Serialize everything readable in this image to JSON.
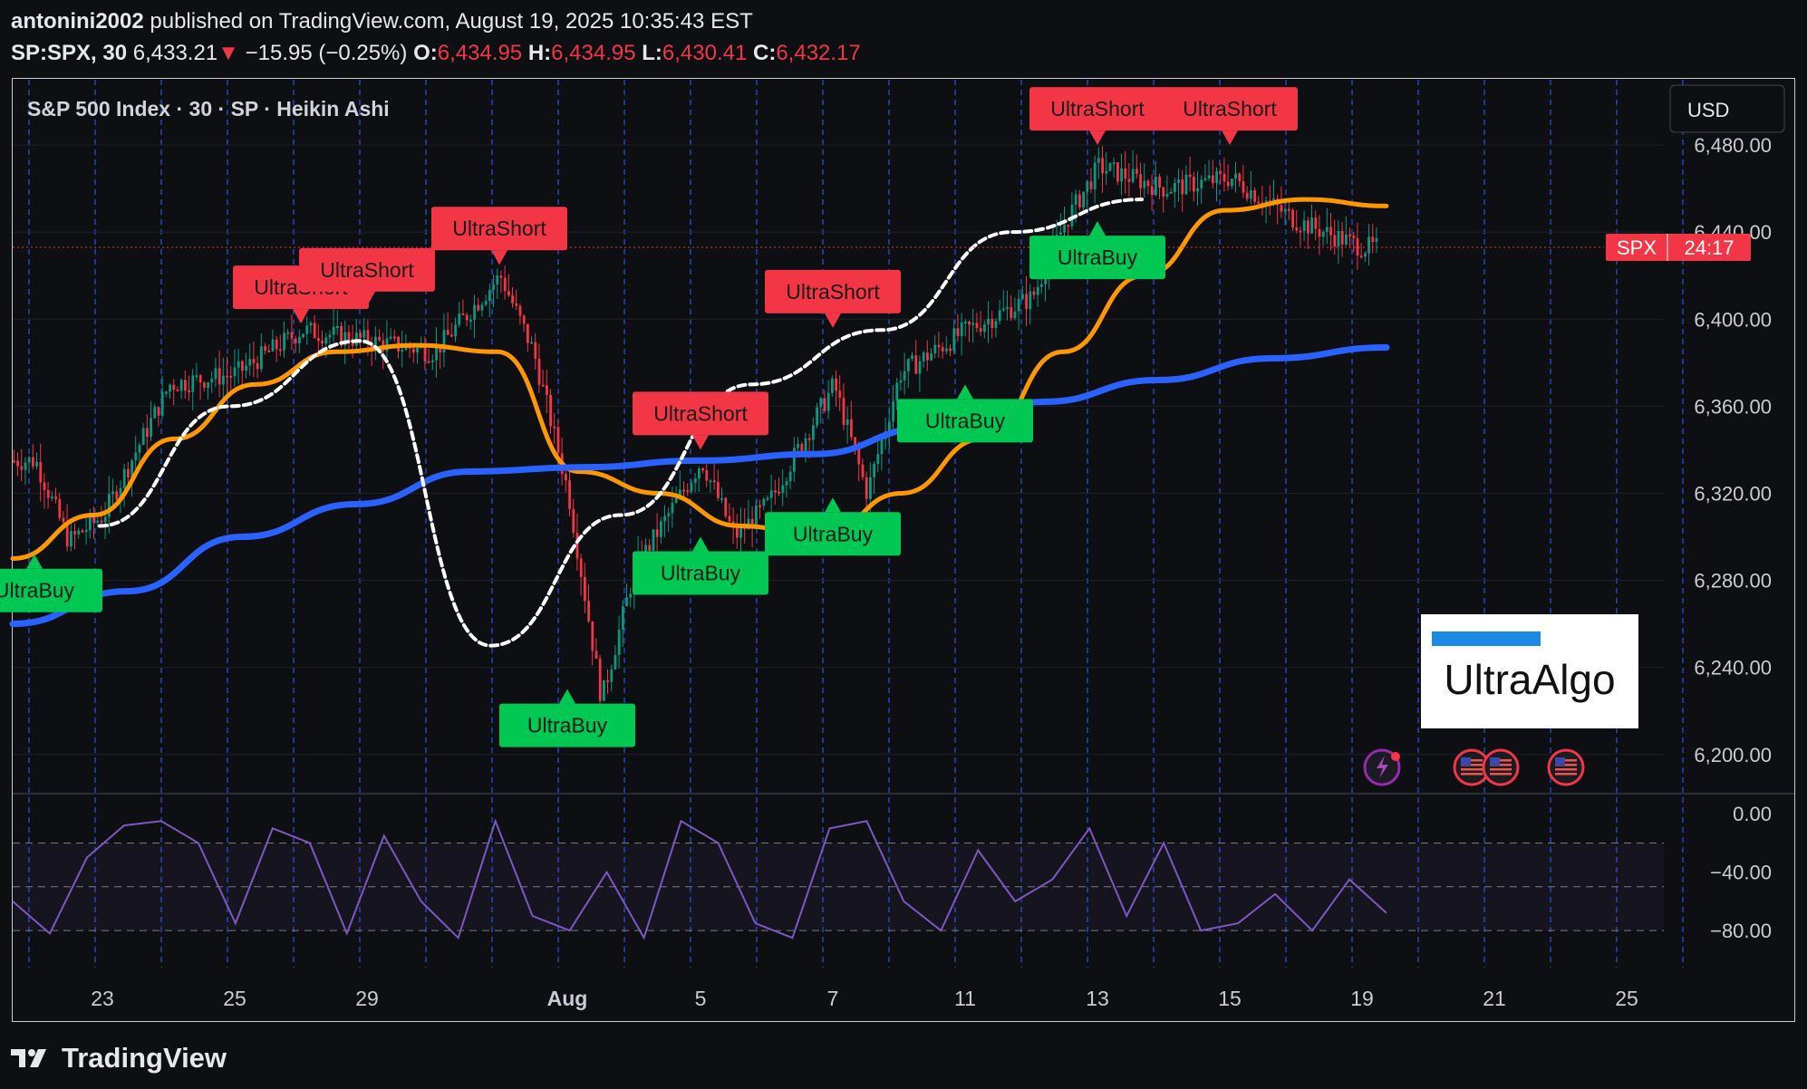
{
  "header": {
    "author": "antonini2002",
    "published": "published on TradingView.com, August 19, 2025 10:35:43 EST",
    "symbol": "SP:SPX, 30",
    "last": "6,433.21",
    "down_arrow": "▼",
    "change": "−15.95 (−0.25%)",
    "o_label": "O:",
    "o": "6,434.95",
    "h_label": "H:",
    "h": "6,434.95",
    "l_label": "L:",
    "l": "6,430.41",
    "c_label": "C:",
    "c": "6,432.17"
  },
  "legend": "S&P 500 Index · 30 · SP · Heikin Ashi",
  "currency_button": "USD",
  "price_tag": {
    "symbol": "SPX",
    "countdown": "24:17",
    "value": 6433.21
  },
  "footer": {
    "brand": "TradingView"
  },
  "watermark": "UltraAlgo",
  "colors": {
    "up": "#089981",
    "down": "#f23645",
    "signal_short": "#f23645",
    "signal_buy": "#00c853",
    "ema_orange": "#ff9800",
    "ema_blue": "#2962ff",
    "trail_white": "#ffffff",
    "oscillator": "#7e57c2",
    "grid_dashed": "#2962ff"
  },
  "chart_data": [
    {
      "type": "line",
      "title": "S&P 500 Index · 30 · SP · Heikin Ashi",
      "candle_style": "Heikin Ashi",
      "x_tick_labels": [
        "23",
        "25",
        "29",
        "Aug",
        "5",
        "7",
        "11",
        "13",
        "15",
        "19",
        "21",
        "25"
      ],
      "y_tick_labels": [
        "6,480.00",
        "6,440.00",
        "6,400.00",
        "6,360.00",
        "6,320.00",
        "6,280.00",
        "6,240.00",
        "6,200.00"
      ],
      "ylim": [
        6182,
        6510
      ],
      "price_points": {
        "x": [
          "Jul 22",
          "Jul 22.5",
          "Jul 23",
          "Jul 24",
          "Jul 25",
          "Jul 28",
          "Jul 29",
          "Jul 30",
          "Jul 31",
          "Jul 31.5",
          "Aug 1",
          "Aug 1.5",
          "Aug 4",
          "Aug 5",
          "Aug 5.5",
          "Aug 6",
          "Aug 7",
          "Aug 7.5",
          "Aug 8",
          "Aug 11",
          "Aug 12",
          "Aug 12.5",
          "Aug 13",
          "Aug 14",
          "Aug 15",
          "Aug 18",
          "Aug 19"
        ],
        "values": [
          6335,
          6298,
          6310,
          6370,
          6375,
          6395,
          6390,
          6385,
          6420,
          6385,
          6320,
          6225,
          6285,
          6335,
          6300,
          6315,
          6370,
          6320,
          6375,
          6395,
          6410,
          6445,
          6470,
          6460,
          6465,
          6445,
          6433
        ]
      },
      "series": [
        {
          "name": "",
          "color": "#ff9800",
          "values": [
            6290,
            6310,
            6345,
            6370,
            6385,
            6388,
            6385,
            6330,
            6320,
            6305,
            6300,
            6320,
            6345,
            6385,
            6420,
            6450,
            6455,
            6452
          ]
        },
        {
          "name": "",
          "color": "#2962ff",
          "values": [
            6260,
            6275,
            6300,
            6315,
            6330,
            6332,
            6335,
            6338,
            6350,
            6362,
            6372,
            6382,
            6387
          ]
        },
        {
          "name": "",
          "color": "#ffffff",
          "values": [
            6305,
            6360,
            6390,
            6250,
            6310,
            6370,
            6395,
            6440,
            6455
          ]
        }
      ],
      "signals": [
        {
          "text": "UltraBuy",
          "x": "Jul 22",
          "price": 6292
        },
        {
          "text": "UltraShort",
          "x": "Jul 28",
          "price": 6398
        },
        {
          "text": "UltraShort",
          "x": "Jul 29",
          "price": 6406
        },
        {
          "text": "UltraShort",
          "x": "Jul 31",
          "price": 6425
        },
        {
          "text": "UltraBuy",
          "x": "Aug 1",
          "price": 6230
        },
        {
          "text": "UltraShort",
          "x": "Aug 5",
          "price": 6340
        },
        {
          "text": "UltraBuy",
          "x": "Aug 5",
          "price": 6300
        },
        {
          "text": "UltraShort",
          "x": "Aug 7",
          "price": 6396
        },
        {
          "text": "UltraBuy",
          "x": "Aug 7",
          "price": 6318
        },
        {
          "text": "UltraBuy",
          "x": "Aug 11",
          "price": 6370
        },
        {
          "text": "UltraShort",
          "x": "Aug 13",
          "price": 6480
        },
        {
          "text": "UltraBuy",
          "x": "Aug 13",
          "price": 6445
        },
        {
          "text": "UltraShort",
          "x": "Aug 15",
          "price": 6480
        }
      ],
      "grid": true
    },
    {
      "type": "line",
      "y_tick_labels": [
        "0.00",
        "−40.00",
        "−80.00"
      ],
      "ylim": [
        -88,
        2
      ],
      "bands": [
        -20,
        -50,
        -80
      ],
      "series": [
        {
          "name": "",
          "color": "#7e57c2",
          "values": [
            -60,
            -82,
            -30,
            -8,
            -5,
            -20,
            -75,
            -10,
            -20,
            -82,
            -15,
            -60,
            -85,
            -5,
            -70,
            -80,
            -40,
            -85,
            -5,
            -20,
            -75,
            -85,
            -10,
            -5,
            -60,
            -80,
            -25,
            -60,
            -45,
            -10,
            -70,
            -20,
            -80,
            -75,
            -55,
            -80,
            -45,
            -68
          ]
        }
      ]
    }
  ]
}
